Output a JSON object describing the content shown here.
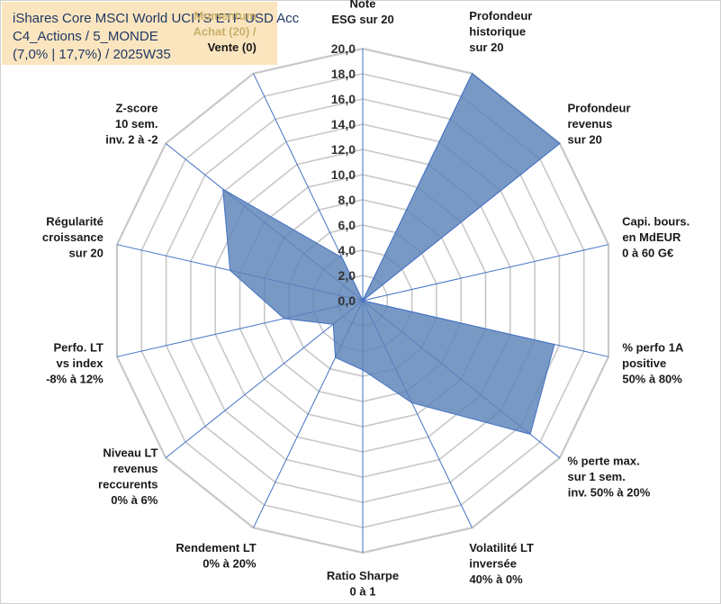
{
  "header": {
    "lines": [
      "iShares Core MSCI World UCITS ETF USD Acc",
      "C4_Actions / 5_MONDE",
      "(7,0% | 17,7%) / 2025W35"
    ]
  },
  "colors": {
    "fill": "#5b82b8",
    "fill_opacity": 0.82,
    "stroke": "#4472c4",
    "grid": "#c8c8c8",
    "spoke": "#4472c4",
    "title_bg": "#fbe5bf",
    "title_text": "#1f3864",
    "muted_label": "#c9b06a"
  },
  "chart_data": {
    "type": "radar",
    "title": "",
    "rmin": 0,
    "rmax": 20,
    "tick_step": 2,
    "tick_labels": [
      "0,0",
      "2,0",
      "4,0",
      "6,0",
      "8,0",
      "10,0",
      "12,0",
      "14,0",
      "16,0",
      "18,0",
      "20,0"
    ],
    "grid": true,
    "axes": [
      {
        "lines": [
          "Note",
          "ESG sur 20"
        ],
        "muted": []
      },
      {
        "lines": [
          "Profondeur",
          "historique",
          "sur 20"
        ],
        "muted": []
      },
      {
        "lines": [
          "Profondeur",
          "revenus",
          "sur 20"
        ],
        "muted": []
      },
      {
        "lines": [
          "Capi. bours.",
          "en MdEUR",
          "0 à 60 G€"
        ],
        "muted": []
      },
      {
        "lines": [
          "% perfo 1A",
          "positive",
          "50% à 80%"
        ],
        "muted": []
      },
      {
        "lines": [
          "% perte max.",
          "sur 1 sem.",
          "inv. 50% à 20%"
        ],
        "muted": []
      },
      {
        "lines": [
          "Volatilité LT",
          "inversée",
          "40% à 0%"
        ],
        "muted": []
      },
      {
        "lines": [
          "Ratio Sharpe",
          "0 à 1"
        ],
        "muted": []
      },
      {
        "lines": [
          "Rendement LT",
          "0% à 20%"
        ],
        "muted": []
      },
      {
        "lines": [
          "Niveau LT",
          "revenus",
          "reccurents",
          "0% à 6%"
        ],
        "muted": []
      },
      {
        "lines": [
          "Perfo. LT",
          "vs index",
          "-8% à 12%"
        ],
        "muted": []
      },
      {
        "lines": [
          "Régularité",
          "croissance",
          "sur 20"
        ],
        "muted": []
      },
      {
        "lines": [
          "Z-score",
          "10 sem.",
          "inv. 2 à -2"
        ],
        "muted": []
      },
      {
        "lines": [
          "Momentum",
          "Achat (20) /",
          "Vente (0)"
        ],
        "muted": [
          0,
          1
        ]
      }
    ],
    "series": [
      {
        "values": [
          0.0,
          20.0,
          20.0,
          0.0,
          15.6,
          17.0,
          9.0,
          5.5,
          5.0,
          3.0,
          6.4,
          10.8,
          14.2,
          3.8
        ]
      }
    ]
  }
}
